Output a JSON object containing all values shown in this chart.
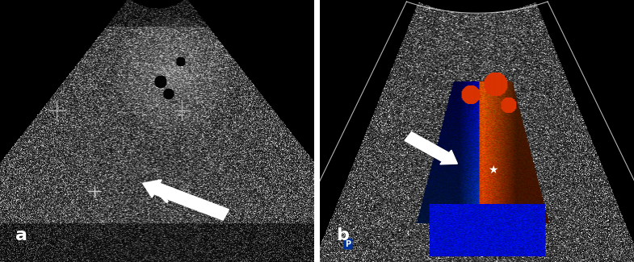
{
  "fig_width": 7.85,
  "fig_height": 3.25,
  "dpi": 100,
  "border_color": "#ffffff",
  "bg_color": "#000000",
  "label_a": "a",
  "label_b": "b",
  "label_color": "white",
  "label_fontsize": 16,
  "panel_a": {
    "bg": "#0a0a0a",
    "arrow_color": "white",
    "cross_color": "#cccccc",
    "plus_color": "#aaaaaa"
  },
  "panel_b": {
    "bg": "#080808",
    "arrow_color": "white",
    "star_color": "white",
    "doppler_colors": [
      "#cc2200",
      "#ee4400",
      "#ff6600",
      "#0044cc",
      "#0066ff",
      "#4499ff"
    ]
  }
}
